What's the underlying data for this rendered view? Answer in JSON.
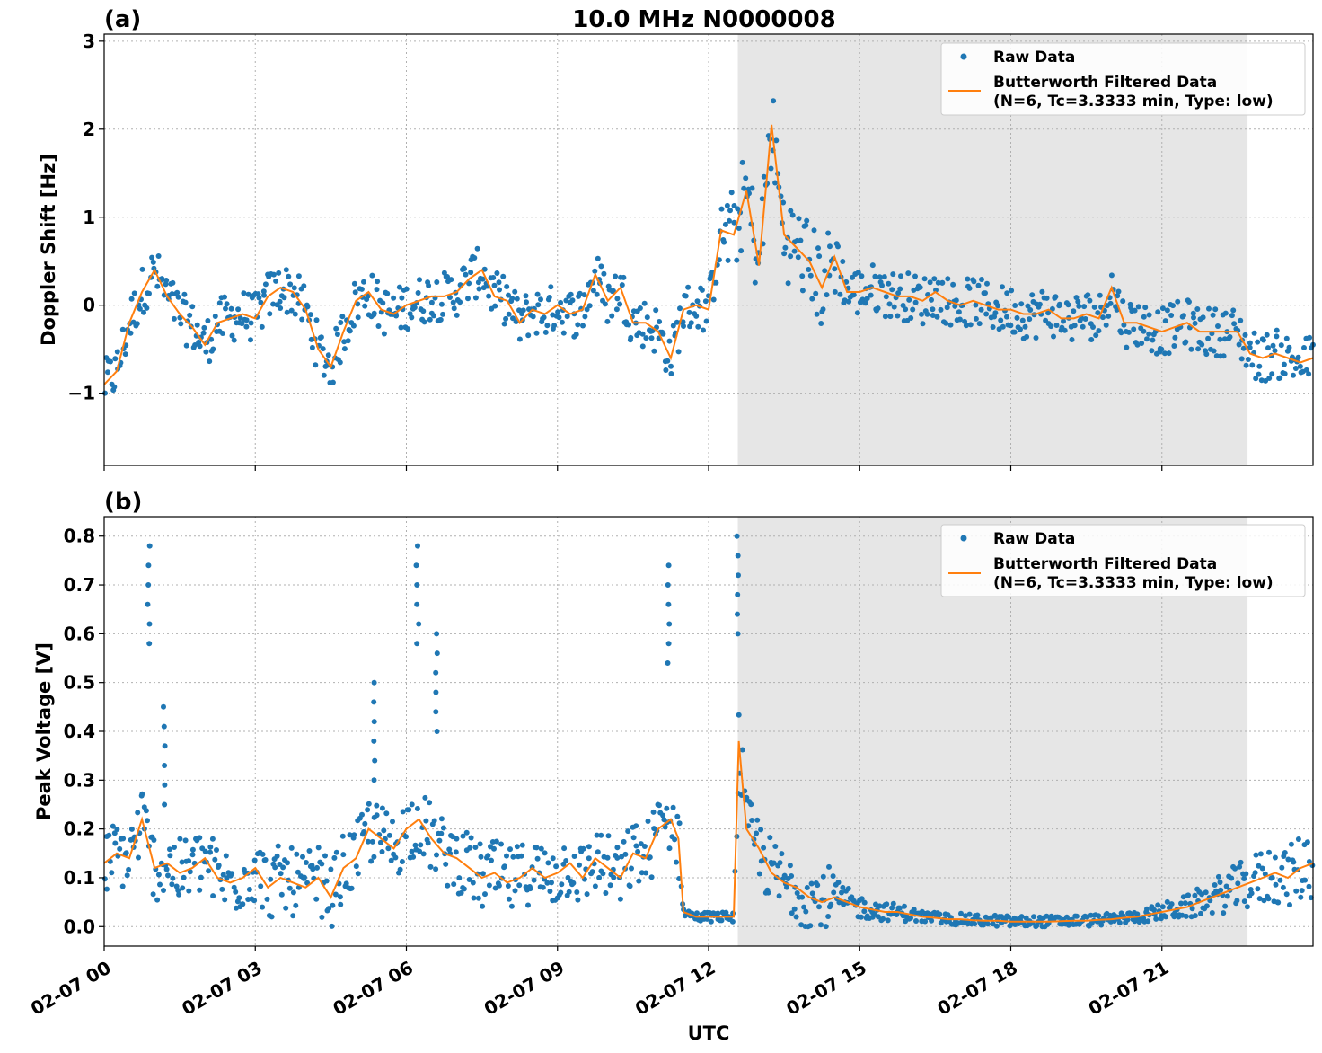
{
  "figure": {
    "title": "10.0 MHz N0000008",
    "xlabel": "UTC",
    "x_ticks": [
      "02-07 00",
      "02-07 03",
      "02-07 06",
      "02-07 09",
      "02-07 12",
      "02-07 15",
      "02-07 18",
      "02-07 21"
    ],
    "shaded_interval_hours": [
      12.58,
      22.7
    ],
    "colors": {
      "raw": "#1f77b4",
      "filtered": "#ff7f0e",
      "shade": "#e6e6e6",
      "grid": "#b0b0b0"
    }
  },
  "chart_data": [
    {
      "type": "scatter",
      "panel_label": "(a)",
      "ylabel": "Doppler Shift [Hz]",
      "xlim_hours": [
        0,
        24
      ],
      "ylim": [
        -1.82,
        3.08
      ],
      "y_ticks": [
        -1,
        0,
        1,
        2,
        3
      ],
      "y_tick_labels": [
        "−1",
        "0",
        "1",
        "2",
        "3"
      ],
      "legend": {
        "position": "upper right",
        "entries": [
          "Raw Data",
          "Butterworth Filtered Data\n(N=6, Tc=3.3333 min, Type: low)"
        ]
      },
      "series": [
        {
          "name": "Butterworth Filtered Data\n(N=6, Tc=3.3333 min, Type: low)",
          "kind": "line",
          "x_hours": [
            0,
            0.25,
            0.5,
            0.75,
            1.0,
            1.25,
            1.5,
            1.75,
            2.0,
            2.25,
            2.5,
            2.75,
            3.0,
            3.25,
            3.5,
            3.75,
            4.0,
            4.25,
            4.5,
            4.75,
            5.0,
            5.25,
            5.5,
            5.75,
            6.0,
            6.25,
            6.5,
            6.75,
            7.0,
            7.25,
            7.5,
            7.75,
            8.0,
            8.25,
            8.5,
            8.75,
            9.0,
            9.25,
            9.5,
            9.75,
            10.0,
            10.25,
            10.5,
            10.75,
            11.0,
            11.25,
            11.5,
            11.75,
            12.0,
            12.25,
            12.5,
            12.75,
            13.0,
            13.25,
            13.5,
            13.75,
            14.0,
            14.25,
            14.5,
            14.75,
            15.0,
            15.25,
            15.5,
            15.75,
            16.0,
            16.25,
            16.5,
            16.75,
            17.0,
            17.25,
            17.5,
            17.75,
            18.0,
            18.25,
            18.5,
            18.75,
            19.0,
            19.25,
            19.5,
            19.75,
            20.0,
            20.25,
            20.5,
            20.75,
            21.0,
            21.25,
            21.5,
            21.75,
            22.0,
            22.25,
            22.5,
            22.75,
            23.0,
            23.25,
            23.5,
            23.75,
            24.0
          ],
          "values": [
            -0.9,
            -0.75,
            -0.2,
            0.15,
            0.4,
            0.1,
            -0.1,
            -0.25,
            -0.45,
            -0.2,
            -0.15,
            -0.1,
            -0.15,
            0.1,
            0.2,
            0.15,
            -0.05,
            -0.5,
            -0.7,
            -0.3,
            0.05,
            0.15,
            -0.05,
            -0.1,
            0.0,
            0.05,
            0.1,
            0.1,
            0.15,
            0.3,
            0.4,
            0.1,
            0.05,
            -0.2,
            -0.05,
            -0.1,
            0.0,
            -0.1,
            -0.05,
            0.35,
            0.05,
            0.2,
            -0.2,
            -0.2,
            -0.3,
            -0.6,
            -0.05,
            0.0,
            -0.05,
            0.85,
            0.8,
            1.3,
            0.45,
            2.05,
            0.8,
            0.65,
            0.5,
            0.2,
            0.55,
            0.15,
            0.15,
            0.2,
            0.15,
            0.1,
            0.1,
            0.05,
            0.15,
            0.05,
            0.0,
            0.05,
            0.0,
            -0.05,
            -0.05,
            -0.1,
            -0.1,
            -0.05,
            -0.15,
            -0.15,
            -0.1,
            -0.15,
            0.2,
            -0.2,
            -0.2,
            -0.25,
            -0.3,
            -0.25,
            -0.2,
            -0.3,
            -0.3,
            -0.3,
            -0.3,
            -0.55,
            -0.6,
            -0.55,
            -0.6,
            -0.65,
            -0.6
          ]
        },
        {
          "name": "Raw Data",
          "kind": "points",
          "note_spread_hz": "approximately ±0.3 around filtered curve, larger during 12:30–14:30"
        }
      ]
    },
    {
      "type": "scatter",
      "panel_label": "(b)",
      "ylabel": "Peak Voltage [V]",
      "xlim_hours": [
        0,
        24
      ],
      "ylim": [
        -0.04,
        0.84
      ],
      "y_ticks": [
        0.0,
        0.1,
        0.2,
        0.3,
        0.4,
        0.5,
        0.6,
        0.7,
        0.8
      ],
      "y_tick_labels": [
        "0.0",
        "0.1",
        "0.2",
        "0.3",
        "0.4",
        "0.5",
        "0.6",
        "0.7",
        "0.8"
      ],
      "legend": {
        "position": "upper right",
        "entries": [
          "Raw Data",
          "Butterworth Filtered Data\n(N=6, Tc=3.3333 min, Type: low)"
        ]
      },
      "series": [
        {
          "name": "Butterworth Filtered Data\n(N=6, Tc=3.3333 min, Type: low)",
          "kind": "line",
          "x_hours": [
            0,
            0.25,
            0.5,
            0.75,
            1.0,
            1.25,
            1.5,
            1.75,
            2.0,
            2.25,
            2.5,
            2.75,
            3.0,
            3.25,
            3.5,
            3.75,
            4.0,
            4.25,
            4.5,
            4.75,
            5.0,
            5.25,
            5.5,
            5.75,
            6.0,
            6.25,
            6.5,
            6.75,
            7.0,
            7.25,
            7.5,
            7.75,
            8.0,
            8.25,
            8.5,
            8.75,
            9.0,
            9.25,
            9.5,
            9.75,
            10.0,
            10.25,
            10.5,
            10.75,
            11.0,
            11.25,
            11.4,
            11.5,
            11.75,
            12.0,
            12.25,
            12.5,
            12.6,
            12.75,
            13.0,
            13.25,
            13.5,
            13.75,
            14.0,
            14.25,
            14.5,
            14.75,
            15.0,
            15.25,
            15.5,
            15.75,
            16.0,
            16.25,
            16.5,
            16.75,
            17.0,
            17.25,
            17.5,
            17.75,
            18.0,
            18.25,
            18.5,
            18.75,
            19.0,
            19.25,
            19.5,
            19.75,
            20.0,
            20.25,
            20.5,
            20.75,
            21.0,
            21.25,
            21.5,
            21.75,
            22.0,
            22.25,
            22.5,
            22.75,
            23.0,
            23.25,
            23.5,
            23.75,
            24.0
          ],
          "values": [
            0.13,
            0.15,
            0.14,
            0.22,
            0.12,
            0.13,
            0.11,
            0.12,
            0.14,
            0.1,
            0.09,
            0.1,
            0.12,
            0.08,
            0.1,
            0.09,
            0.08,
            0.1,
            0.06,
            0.12,
            0.14,
            0.2,
            0.18,
            0.16,
            0.2,
            0.22,
            0.18,
            0.15,
            0.14,
            0.12,
            0.1,
            0.11,
            0.09,
            0.1,
            0.12,
            0.1,
            0.11,
            0.13,
            0.1,
            0.14,
            0.12,
            0.1,
            0.15,
            0.14,
            0.2,
            0.22,
            0.18,
            0.03,
            0.02,
            0.02,
            0.02,
            0.02,
            0.38,
            0.2,
            0.16,
            0.11,
            0.09,
            0.08,
            0.06,
            0.05,
            0.06,
            0.05,
            0.04,
            0.035,
            0.03,
            0.03,
            0.025,
            0.02,
            0.018,
            0.015,
            0.015,
            0.013,
            0.012,
            0.012,
            0.01,
            0.01,
            0.01,
            0.01,
            0.011,
            0.012,
            0.012,
            0.014,
            0.015,
            0.018,
            0.02,
            0.025,
            0.03,
            0.035,
            0.04,
            0.05,
            0.06,
            0.07,
            0.08,
            0.09,
            0.1,
            0.11,
            0.1,
            0.12,
            0.13
          ]
        },
        {
          "name": "Raw Data",
          "kind": "points",
          "note_spread_v": "scattered above and below filtered curve; isolated spikes up to ~0.8"
        }
      ]
    }
  ]
}
